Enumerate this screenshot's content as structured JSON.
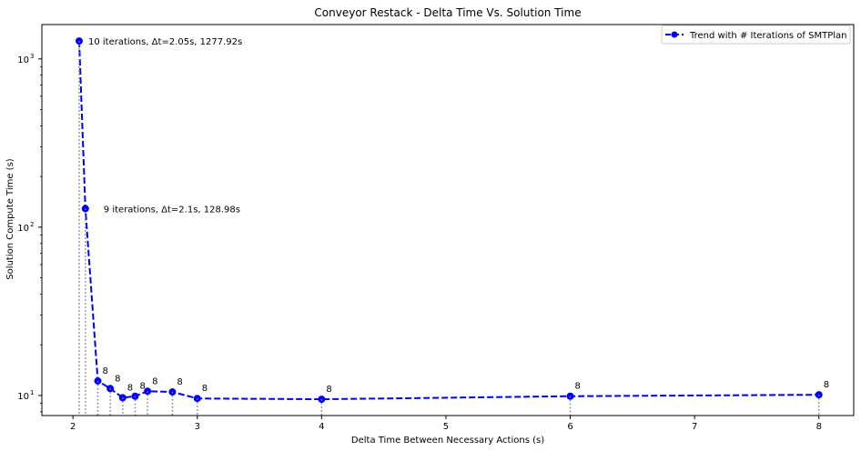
{
  "chart_data": {
    "type": "line",
    "title": "Conveyor Restack - Delta Time Vs. Solution Time",
    "xlabel": "Delta Time Between Necessary Actions (s)",
    "ylabel": "Solution Compute Time (s)",
    "xlim": [
      1.75,
      8.28
    ],
    "ylim": [
      7.6,
      1600
    ],
    "yscale": "log",
    "grid": false,
    "legend_position": "top-right",
    "x_ticks": [
      2,
      3,
      4,
      5,
      6,
      7,
      8
    ],
    "y_ticks": [
      {
        "value": 10,
        "label": "10",
        "sup": "1"
      },
      {
        "value": 100,
        "label": "10",
        "sup": "2"
      },
      {
        "value": 1000,
        "label": "10",
        "sup": "3"
      }
    ],
    "series": [
      {
        "name": "Trend with # Iterations of SMTPlan",
        "color": "#0000ff",
        "x": [
          2.05,
          2.1,
          2.2,
          2.3,
          2.4,
          2.5,
          2.6,
          2.8,
          3.0,
          4.0,
          6.0,
          8.0
        ],
        "y": [
          1277.92,
          128.98,
          12.2,
          11.0,
          9.7,
          9.9,
          10.6,
          10.5,
          9.6,
          9.5,
          9.9,
          10.1
        ]
      }
    ],
    "annotations": [
      {
        "x": 2.05,
        "y": 1277.92,
        "text": "10 iterations, Δt=2.05s, 1277.92s"
      },
      {
        "x": 2.1,
        "y": 128.98,
        "text": "9 iterations, Δt=2.1s, 128.98s"
      },
      {
        "x": 2.2,
        "y": 12.2,
        "text": "8"
      },
      {
        "x": 2.3,
        "y": 11.0,
        "text": "8"
      },
      {
        "x": 2.4,
        "y": 9.7,
        "text": "8"
      },
      {
        "x": 2.5,
        "y": 9.9,
        "text": "8"
      },
      {
        "x": 2.6,
        "y": 10.6,
        "text": "8"
      },
      {
        "x": 2.8,
        "y": 10.5,
        "text": "8"
      },
      {
        "x": 3.0,
        "y": 9.6,
        "text": "8"
      },
      {
        "x": 4.0,
        "y": 9.5,
        "text": "8"
      },
      {
        "x": 6.0,
        "y": 9.9,
        "text": "8"
      },
      {
        "x": 8.0,
        "y": 10.1,
        "text": "8"
      }
    ]
  }
}
